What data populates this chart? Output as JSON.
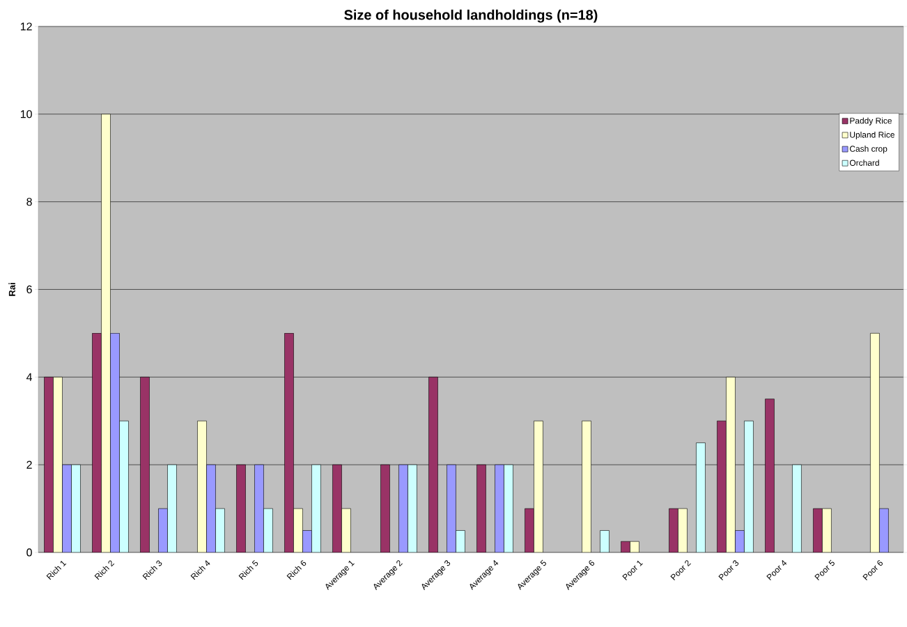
{
  "chart_data": {
    "type": "bar",
    "title": "Size of household landholdings (n=18)",
    "ylabel": "Rai",
    "categories": [
      "Rich 1",
      "Rich 2",
      "Rich 3",
      "Rich 4",
      "Rich 5",
      "Rich 6",
      "Average 1",
      "Average 2",
      "Average 3",
      "Average 4",
      "Average 5",
      "Average 6",
      "Poor 1",
      "Poor 2",
      "Poor 3",
      "Poor 4",
      "Poor 5",
      "Poor 6"
    ],
    "series": [
      {
        "name": "Paddy Rice",
        "color": "#993366",
        "values": [
          4,
          5,
          4,
          0,
          2,
          5,
          2,
          2,
          4,
          2,
          1,
          0,
          0.25,
          1,
          3,
          3.5,
          1,
          0
        ]
      },
      {
        "name": "Upland Rice",
        "color": "#ffffcc",
        "values": [
          4,
          10,
          0,
          3,
          0,
          1,
          1,
          0,
          0,
          0,
          3,
          3,
          0.25,
          1,
          4,
          0,
          1,
          5
        ]
      },
      {
        "name": "Cash crop",
        "color": "#9999ff",
        "values": [
          2,
          5,
          1,
          2,
          2,
          0.5,
          0,
          2,
          2,
          2,
          0,
          0,
          0,
          0,
          0.5,
          0,
          0,
          1
        ]
      },
      {
        "name": "Orchard",
        "color": "#ccffff",
        "values": [
          2,
          3,
          2,
          1,
          1,
          2,
          0,
          2,
          0.5,
          2,
          0,
          0.5,
          0,
          2.5,
          3,
          2,
          0,
          0
        ]
      }
    ],
    "ylim": [
      0,
      12
    ],
    "yticks": [
      0,
      2,
      4,
      6,
      8,
      10,
      12
    ],
    "grid": "y",
    "legend": "top right"
  }
}
